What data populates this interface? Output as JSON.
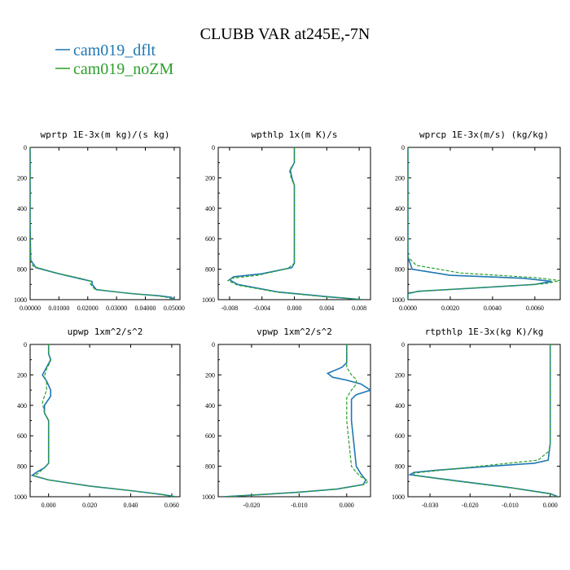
{
  "figure": {
    "title": "CLUBB VAR at245E,-7N",
    "legend": [
      {
        "label": "cam019_dflt",
        "color": "#1f77b4"
      },
      {
        "label": "cam019_noZM",
        "color": "#2ca02c"
      }
    ]
  },
  "chart_data": [
    {
      "type": "line",
      "title": "wprtp  1E-3x(m kg)/(s kg)",
      "xlim": [
        0,
        0.052
      ],
      "ylim": [
        1000,
        0
      ],
      "xticks": [
        0,
        0.01,
        0.02,
        0.03,
        0.04,
        0.05
      ],
      "xtick_labels": [
        "0.00000",
        "0.01000",
        "0.02000",
        "0.03000",
        "0.04000",
        "0.05000"
      ],
      "yticks": [
        0,
        200,
        400,
        600,
        800,
        1000
      ],
      "ytick_labels": [
        "0",
        "200",
        "400",
        "600",
        "800",
        "1000"
      ],
      "series": [
        {
          "name": "cam019_dflt",
          "x": [
            0,
            0,
            0.0002,
            0.002,
            0.01,
            0.018,
            0.0215,
            0.0215,
            0.023,
            0.035,
            0.045,
            0.049,
            0.05
          ],
          "y": [
            0,
            500,
            740,
            790,
            830,
            865,
            880,
            900,
            935,
            960,
            975,
            985,
            1000
          ]
        },
        {
          "name": "cam019_noZM",
          "x": [
            0,
            0,
            0.0001,
            0.001,
            0.009,
            0.0175,
            0.021,
            0.021,
            0.0225,
            0.034,
            0.044,
            0.048,
            0.0495
          ],
          "y": [
            0,
            500,
            740,
            780,
            825,
            860,
            878,
            900,
            932,
            958,
            975,
            986,
            1000
          ]
        }
      ]
    },
    {
      "type": "line",
      "title": "wpthlp  1x(m K)/s",
      "xlim": [
        -0.0094,
        0.0094
      ],
      "ylim": [
        1000,
        0
      ],
      "xticks": [
        -0.008,
        -0.004,
        0,
        0.004,
        0.008
      ],
      "xtick_labels": [
        "-0.008",
        "-0.004",
        "0.000",
        "0.004",
        "0.008"
      ],
      "yticks": [
        0,
        200,
        400,
        600,
        800,
        1000
      ],
      "ytick_labels": [
        "0",
        "200",
        "400",
        "600",
        "800",
        "1000"
      ],
      "series": [
        {
          "name": "cam019_dflt",
          "x": [
            0,
            0,
            -0.0005,
            -0.0003,
            0,
            0,
            -0.0003,
            -0.004,
            -0.0075,
            -0.008,
            -0.007,
            -0.002,
            0.004,
            0.0085
          ],
          "y": [
            0,
            100,
            150,
            200,
            250,
            760,
            790,
            830,
            850,
            870,
            900,
            950,
            980,
            1000
          ]
        },
        {
          "name": "cam019_noZM",
          "x": [
            0,
            0,
            -0.0006,
            -0.0004,
            0,
            0,
            -0.0008,
            -0.0045,
            -0.0078,
            -0.0082,
            -0.007,
            -0.002,
            0.004,
            0.0085
          ],
          "y": [
            0,
            100,
            150,
            200,
            250,
            760,
            795,
            840,
            860,
            875,
            905,
            952,
            982,
            1000
          ]
        }
      ]
    },
    {
      "type": "line",
      "title": "wprcp  1E-3x(m/s) (kg/kg)",
      "xlim": [
        0,
        0.0072
      ],
      "ylim": [
        1000,
        0
      ],
      "xticks": [
        0,
        0.002,
        0.004,
        0.006
      ],
      "xtick_labels": [
        "0.0000",
        "0.0020",
        "0.0040",
        "0.0060"
      ],
      "yticks": [
        0,
        200,
        400,
        600,
        800,
        1000
      ],
      "ytick_labels": [
        "0",
        "200",
        "400",
        "600",
        "800",
        "1000"
      ],
      "series": [
        {
          "name": "cam019_dflt",
          "x": [
            0,
            0,
            0.0002,
            0.002,
            0.0055,
            0.0068,
            0.006,
            0.003,
            0.0005,
            0,
            0
          ],
          "y": [
            0,
            720,
            800,
            840,
            860,
            880,
            900,
            925,
            945,
            960,
            1000
          ]
        },
        {
          "name": "cam019_noZM",
          "x": [
            0,
            0,
            0.0004,
            0.0025,
            0.006,
            0.0072,
            0.0065,
            0.0035,
            0.0008,
            0,
            0
          ],
          "y": [
            0,
            720,
            775,
            825,
            855,
            875,
            895,
            920,
            942,
            955,
            1000
          ]
        }
      ]
    },
    {
      "type": "line",
      "title": "upwp  1xm^2/s^2",
      "xlim": [
        -0.009,
        0.064
      ],
      "ylim": [
        1000,
        0
      ],
      "xticks": [
        0,
        0.02,
        0.04,
        0.06
      ],
      "xtick_labels": [
        "0.000",
        "0.020",
        "0.040",
        "0.060"
      ],
      "yticks": [
        0,
        200,
        400,
        600,
        800,
        1000
      ],
      "ytick_labels": [
        "0",
        "200",
        "400",
        "600",
        "800",
        "1000"
      ],
      "series": [
        {
          "name": "cam019_dflt",
          "x": [
            0,
            0,
            0.001,
            -0.001,
            -0.003,
            -0.001,
            0.001,
            0.001,
            -0.002,
            -0.002,
            0,
            0,
            -0.002,
            -0.006,
            -0.008,
            0,
            0.02,
            0.04,
            0.055,
            0.062
          ],
          "y": [
            0,
            60,
            100,
            150,
            200,
            240,
            300,
            340,
            400,
            450,
            500,
            780,
            810,
            840,
            860,
            890,
            930,
            960,
            985,
            1000
          ]
        },
        {
          "name": "cam019_noZM",
          "x": [
            0,
            0,
            0.001,
            -0.001,
            -0.002,
            -0.001,
            -0.001,
            -0.002,
            -0.003,
            -0.002,
            0,
            0,
            -0.002,
            -0.005,
            -0.007,
            0,
            0.02,
            0.04,
            0.055,
            0.062
          ],
          "y": [
            0,
            60,
            110,
            160,
            210,
            250,
            300,
            340,
            380,
            450,
            500,
            780,
            810,
            845,
            862,
            890,
            930,
            960,
            985,
            1000
          ]
        }
      ]
    },
    {
      "type": "line",
      "title": "vpwp  1xm^2/s^2",
      "xlim": [
        -0.027,
        0.005
      ],
      "ylim": [
        1000,
        0
      ],
      "xticks": [
        -0.02,
        -0.01,
        0
      ],
      "xtick_labels": [
        "-0.020",
        "-0.010",
        "0.000"
      ],
      "yticks": [
        0,
        200,
        400,
        600,
        800,
        1000
      ],
      "ytick_labels": [
        "0",
        "200",
        "400",
        "600",
        "800",
        "1000"
      ],
      "series": [
        {
          "name": "cam019_dflt",
          "x": [
            0,
            0,
            -0.001,
            -0.004,
            -0.003,
            0,
            0.003,
            0.005,
            0.002,
            0.001,
            0.001,
            0.001,
            0.002,
            0.003,
            0.004,
            0.0035,
            -0.002,
            -0.01,
            -0.02,
            -0.026
          ],
          "y": [
            0,
            120,
            150,
            190,
            215,
            235,
            260,
            300,
            330,
            360,
            400,
            500,
            800,
            850,
            890,
            920,
            950,
            970,
            990,
            1000
          ]
        },
        {
          "name": "cam019_noZM",
          "x": [
            0,
            0,
            0,
            0.001,
            0.002,
            0.002,
            0.001,
            0,
            0,
            0,
            0.001,
            0.002,
            0.003,
            0.0045,
            0.0038,
            -0.002,
            -0.01,
            -0.02,
            -0.026
          ],
          "y": [
            0,
            100,
            150,
            200,
            230,
            260,
            300,
            350,
            400,
            500,
            800,
            840,
            870,
            895,
            920,
            950,
            970,
            990,
            1000
          ]
        }
      ]
    },
    {
      "type": "line",
      "title": "rtpthlp  1E-3x(kg K)/kg",
      "xlim": [
        -0.0355,
        0.0025
      ],
      "ylim": [
        1000,
        0
      ],
      "xticks": [
        -0.03,
        -0.02,
        -0.01,
        0
      ],
      "xtick_labels": [
        "-0.030",
        "-0.020",
        "-0.010",
        "0.000"
      ],
      "yticks": [
        0,
        200,
        400,
        600,
        800,
        1000
      ],
      "ytick_labels": [
        "0",
        "200",
        "400",
        "600",
        "800",
        "1000"
      ],
      "series": [
        {
          "name": "cam019_dflt",
          "x": [
            0,
            0,
            -0.0005,
            -0.004,
            -0.015,
            -0.028,
            -0.034,
            -0.035,
            -0.028,
            -0.01,
            0,
            0.002
          ],
          "y": [
            0,
            650,
            760,
            780,
            800,
            825,
            840,
            855,
            880,
            940,
            980,
            1000
          ]
        },
        {
          "name": "cam019_noZM",
          "x": [
            0,
            0,
            -0.0003,
            -0.003,
            -0.014,
            -0.027,
            -0.034,
            -0.034,
            -0.027,
            -0.009,
            0,
            0.002
          ],
          "y": [
            0,
            650,
            700,
            760,
            790,
            825,
            845,
            860,
            885,
            945,
            982,
            1000
          ]
        }
      ]
    }
  ]
}
